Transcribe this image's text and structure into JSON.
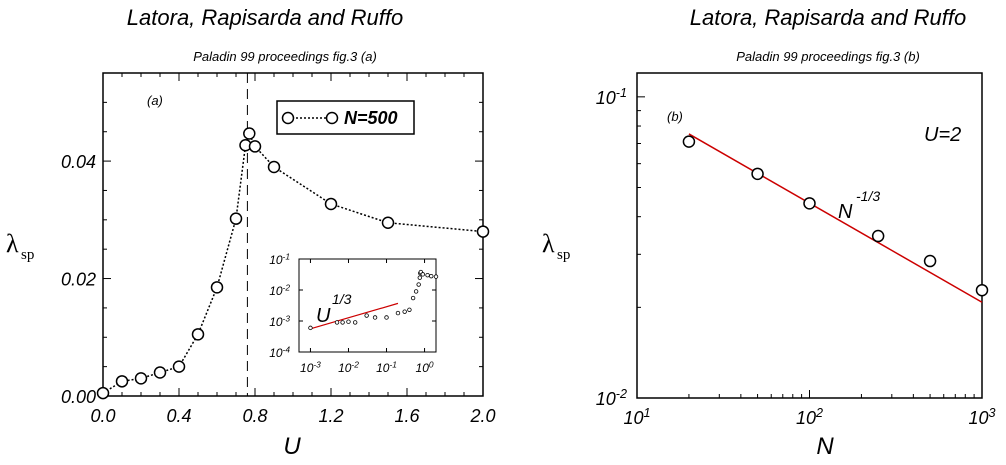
{
  "header": {
    "left_title": "Latora, Rapisarda and Ruffo",
    "left_subtitle": "Paladin  99 proceedings  fig.3 (a)",
    "right_title": "Latora, Rapisarda and Ruffo",
    "right_subtitle": "Paladin  99 proceedings  fig.3 (b)"
  },
  "chart_data": [
    {
      "type": "line",
      "panel_label": "(a)",
      "xlabel": "U",
      "ylabel": "λ",
      "ylabel_sub": "sp",
      "xlim": [
        0.0,
        2.0
      ],
      "ylim": [
        0.0,
        0.055
      ],
      "x_ticks": [
        0.0,
        0.4,
        0.8,
        1.2,
        1.6,
        2.0
      ],
      "x_tick_labels": [
        "0.0",
        "0.4",
        "0.8",
        "1.2",
        "1.6",
        "2.0"
      ],
      "y_ticks": [
        0.0,
        0.02,
        0.04
      ],
      "y_tick_labels": [
        "0.00",
        "0.02",
        "0.04"
      ],
      "vline_x": 0.76,
      "legend_placement": "top-right",
      "series": [
        {
          "name": "N=500",
          "color": "#000000",
          "line_style": "dotted",
          "marker": "open-circle",
          "x": [
            0.0,
            0.1,
            0.2,
            0.3,
            0.4,
            0.5,
            0.6,
            0.7,
            0.75,
            0.77,
            0.8,
            0.9,
            1.2,
            1.5,
            2.0
          ],
          "y": [
            0.0005,
            0.0025,
            0.003,
            0.004,
            0.005,
            0.0105,
            0.0185,
            0.0302,
            0.0427,
            0.0447,
            0.0425,
            0.039,
            0.0327,
            0.0295,
            0.028
          ]
        }
      ],
      "inset": {
        "type": "scatter",
        "scale": "log-log",
        "annotation_base": "U",
        "annotation_exp": "1/3",
        "x_tick_labels": [
          {
            "base": "10",
            "exp": "-3"
          },
          {
            "base": "10",
            "exp": "-2"
          },
          {
            "base": "10",
            "exp": "-1"
          },
          {
            "base": "10",
            "exp": "0"
          }
        ],
        "y_tick_labels": [
          {
            "base": "10",
            "exp": "-1"
          },
          {
            "base": "10",
            "exp": "-2"
          },
          {
            "base": "10",
            "exp": "-3"
          },
          {
            "base": "10",
            "exp": "-4"
          }
        ],
        "xlim": [
          0.0005,
          2.0
        ],
        "ylim": [
          0.0001,
          0.1
        ],
        "fit_color": "#cc0000",
        "fit": {
          "x": [
            0.001,
            0.2
          ],
          "y": [
            0.00056,
            0.0037
          ]
        },
        "points": {
          "x": [
            0.001,
            0.005,
            0.007,
            0.01,
            0.015,
            0.03,
            0.05,
            0.1,
            0.2,
            0.3,
            0.4,
            0.5,
            0.6,
            0.7,
            0.75,
            0.77,
            0.8,
            0.9,
            1.2,
            1.5,
            2.0
          ],
          "y": [
            0.0006,
            0.0009,
            0.0009,
            0.00095,
            0.0009,
            0.0015,
            0.0013,
            0.0013,
            0.0018,
            0.002,
            0.0023,
            0.0055,
            0.009,
            0.015,
            0.025,
            0.035,
            0.038,
            0.032,
            0.03,
            0.028,
            0.027
          ]
        }
      }
    },
    {
      "type": "scatter",
      "scale": "log-log",
      "panel_label": "(b)",
      "annotation": "U=2",
      "fit_label_base": "N",
      "fit_label_exp": "-1/3",
      "xlabel": "N",
      "ylabel": "λ",
      "ylabel_sub": "sp",
      "xlim": [
        10,
        1000
      ],
      "ylim": [
        0.01,
        0.12
      ],
      "x_tick_labels": [
        {
          "base": "10",
          "exp": "1"
        },
        {
          "base": "10",
          "exp": "2"
        },
        {
          "base": "10",
          "exp": "3"
        }
      ],
      "y_tick_labels": [
        {
          "base": "10",
          "exp": "-1"
        },
        {
          "base": "10",
          "exp": "-2"
        }
      ],
      "fit_color": "#cc0000",
      "fit": {
        "x": [
          20,
          1000
        ],
        "y": [
          0.0753,
          0.0208
        ]
      },
      "points": {
        "x": [
          20,
          50,
          100,
          250,
          500,
          1000
        ],
        "y": [
          0.071,
          0.0555,
          0.0443,
          0.0345,
          0.0285,
          0.0228
        ]
      }
    }
  ]
}
